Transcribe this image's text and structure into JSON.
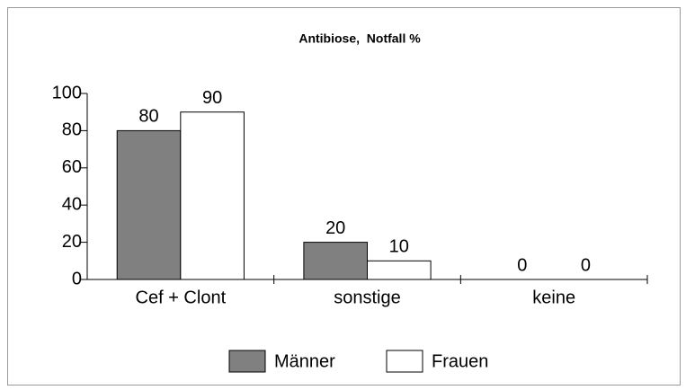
{
  "chart_data": {
    "type": "bar",
    "title": "Antibiose,  Notfall %",
    "categories": [
      "Cef + Clont",
      "sonstige",
      "keine"
    ],
    "series": [
      {
        "name": "Männer",
        "color": "#808080",
        "values": [
          80,
          20,
          0
        ]
      },
      {
        "name": "Frauen",
        "color": "#ffffff",
        "values": [
          90,
          10,
          0
        ]
      }
    ],
    "ylim": [
      0,
      100
    ],
    "yticks": [
      0,
      20,
      40,
      60,
      80,
      100
    ],
    "grid": false,
    "legend": "bottom"
  }
}
